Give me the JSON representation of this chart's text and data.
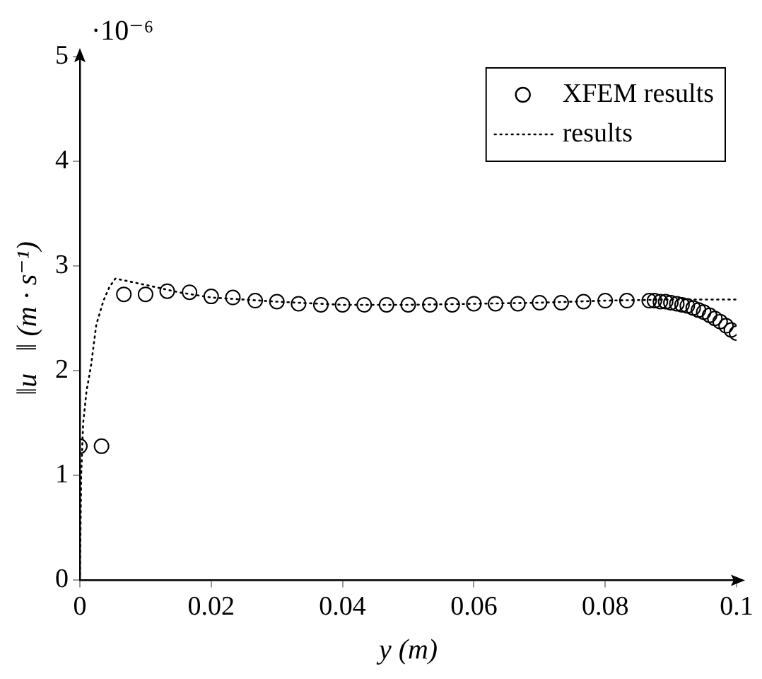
{
  "chart_data": {
    "type": "scatter",
    "xlabel": "y (m)",
    "ylabel": "‖u⃗‖ (m · s⁻¹)",
    "annotations": [
      "·10⁻⁶"
    ],
    "xlim": [
      0,
      0.1
    ],
    "xticks": [
      0,
      0.02,
      0.04,
      0.06,
      0.08,
      0.1
    ],
    "ylim": [
      0,
      5
    ],
    "yticks": [
      0,
      1,
      2,
      3,
      4,
      5
    ],
    "grid": false,
    "legend": "top right",
    "series": [
      {
        "name": "XFEM results",
        "type": "scatter",
        "marker": "circle",
        "color": "#000000",
        "x": [
          0,
          0.0033,
          0.0067,
          0.01,
          0.0133,
          0.0167,
          0.02,
          0.0233,
          0.0267,
          0.03,
          0.0333,
          0.0367,
          0.04,
          0.0433,
          0.0467,
          0.05,
          0.0533,
          0.0567,
          0.06,
          0.0633,
          0.0667,
          0.07,
          0.0733,
          0.0767,
          0.08,
          0.0833,
          0.0867,
          0.0875,
          0.0884,
          0.0892,
          0.09,
          0.0909,
          0.0917,
          0.0925,
          0.0934,
          0.0942,
          0.095,
          0.0959,
          0.0967,
          0.0975,
          0.0984,
          0.0992,
          0.1
        ],
        "values": [
          1.28,
          1.28,
          2.73,
          2.73,
          2.76,
          2.75,
          2.71,
          2.7,
          2.67,
          2.66,
          2.64,
          2.63,
          2.63,
          2.63,
          2.63,
          2.63,
          2.63,
          2.63,
          2.64,
          2.64,
          2.64,
          2.65,
          2.65,
          2.66,
          2.67,
          2.67,
          2.67,
          2.67,
          2.66,
          2.66,
          2.65,
          2.64,
          2.63,
          2.62,
          2.6,
          2.58,
          2.56,
          2.53,
          2.5,
          2.47,
          2.43,
          2.39,
          2.36
        ]
      },
      {
        "name": "results",
        "type": "line",
        "marker": "none",
        "line_style": "dotted",
        "color": "#000000",
        "x": [
          0,
          0.0002,
          0.0005,
          0.001,
          0.0017,
          0.0025,
          0.0036,
          0.0045,
          0.0054,
          0.007,
          0.01,
          0.015,
          0.02,
          0.03,
          0.04,
          0.05,
          0.06,
          0.07,
          0.08,
          0.09,
          0.1
        ],
        "values": [
          0,
          1.0,
          1.5,
          1.8,
          2.05,
          2.44,
          2.67,
          2.8,
          2.88,
          2.86,
          2.82,
          2.75,
          2.7,
          2.66,
          2.63,
          2.63,
          2.64,
          2.65,
          2.67,
          2.68,
          2.68
        ]
      }
    ]
  }
}
